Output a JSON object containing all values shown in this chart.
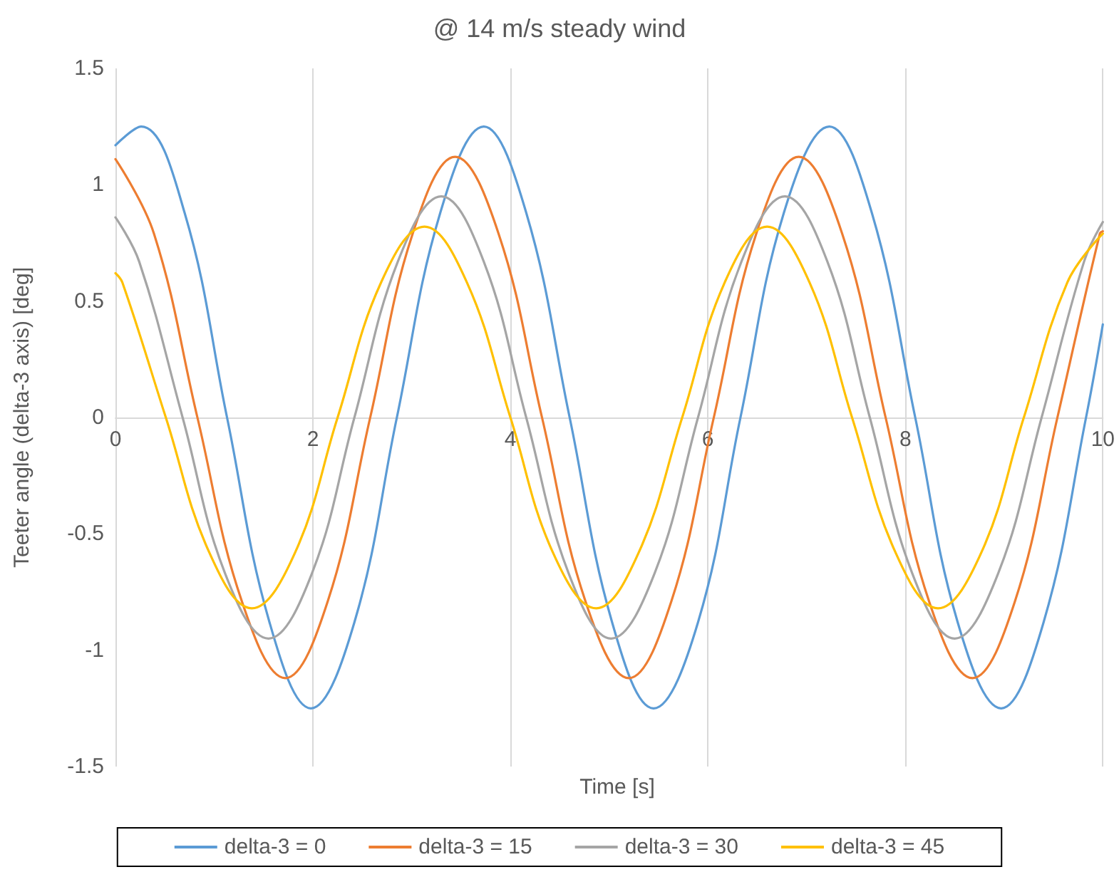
{
  "chart_data": {
    "type": "line",
    "title": "@ 14 m/s steady wind",
    "xlabel": "Time [s]",
    "ylabel": "Teeter angle (delta-3 axis) [deg]",
    "xlim": [
      0,
      10
    ],
    "xticks": [
      0,
      2,
      4,
      6,
      8,
      10
    ],
    "ylim": [
      -1.5,
      1.5
    ],
    "yticks": [
      -1.5,
      -1,
      -0.5,
      0,
      0.5,
      1,
      1.5
    ],
    "grid": "x",
    "legend": "bottom",
    "marker": "none",
    "line_style": "solid",
    "series": [
      {
        "name": "delta-3 = 0",
        "color": "#5b9bd5",
        "x": [
          0,
          0.26,
          0.7,
          1.13,
          1.56,
          1.98,
          2.42,
          2.85,
          3.29,
          3.73,
          4.16,
          4.6,
          5.03,
          5.45,
          5.9,
          6.33,
          6.77,
          7.23,
          7.66,
          8.1,
          8.53,
          8.97,
          9.4,
          9.83,
          10
        ],
        "values": [
          1.17,
          1.25,
          0.88,
          0,
          -0.88,
          -1.25,
          -0.88,
          0,
          0.88,
          1.25,
          0.88,
          0,
          -0.88,
          -1.25,
          -0.88,
          0,
          0.88,
          1.25,
          0.88,
          0,
          -0.88,
          -1.25,
          -0.88,
          0,
          0.4
        ]
      },
      {
        "name": "delta-3 = 15",
        "color": "#ed7d31",
        "x": [
          0,
          0.39,
          0.83,
          1.28,
          1.72,
          2.15,
          2.58,
          3.01,
          3.44,
          3.88,
          4.32,
          4.76,
          5.2,
          5.63,
          6.06,
          6.49,
          6.92,
          7.36,
          7.8,
          8.24,
          8.68,
          9.11,
          9.54,
          9.97,
          10
        ],
        "values": [
          1.11,
          0.79,
          0,
          -0.79,
          -1.12,
          -0.79,
          0,
          0.79,
          1.12,
          0.79,
          0,
          -0.79,
          -1.12,
          -0.79,
          0,
          0.79,
          1.12,
          0.79,
          0,
          -0.79,
          -1.12,
          -0.79,
          0,
          0.79,
          0.8
        ]
      },
      {
        "name": "delta-3 = 30",
        "color": "#a5a5a5",
        "x": [
          0,
          0.24,
          0.68,
          1.11,
          1.55,
          1.99,
          2.42,
          2.86,
          3.3,
          3.73,
          4.16,
          4.59,
          5.02,
          5.46,
          5.9,
          6.34,
          6.78,
          7.21,
          7.64,
          8.07,
          8.5,
          8.94,
          9.38,
          9.81,
          10
        ],
        "values": [
          0.86,
          0.67,
          0,
          -0.67,
          -0.95,
          -0.67,
          0,
          0.67,
          0.95,
          0.67,
          0,
          -0.67,
          -0.95,
          -0.67,
          0,
          0.67,
          0.95,
          0.67,
          0,
          -0.67,
          -0.95,
          -0.67,
          0,
          0.67,
          0.84
        ]
      },
      {
        "name": "delta-3 = 45",
        "color": "#ffc000",
        "x": [
          0,
          0.07,
          0.51,
          0.95,
          1.38,
          1.82,
          2.25,
          2.69,
          3.13,
          3.56,
          4,
          4.43,
          4.87,
          5.3,
          5.74,
          6.17,
          6.6,
          7.03,
          7.46,
          7.9,
          8.33,
          8.77,
          9.2,
          9.64,
          10
        ],
        "values": [
          0.62,
          0.58,
          0,
          -0.58,
          -0.82,
          -0.58,
          0,
          0.58,
          0.82,
          0.58,
          0,
          -0.58,
          -0.82,
          -0.58,
          0,
          0.58,
          0.82,
          0.58,
          0,
          -0.58,
          -0.82,
          -0.58,
          0,
          0.58,
          0.79
        ]
      }
    ]
  }
}
